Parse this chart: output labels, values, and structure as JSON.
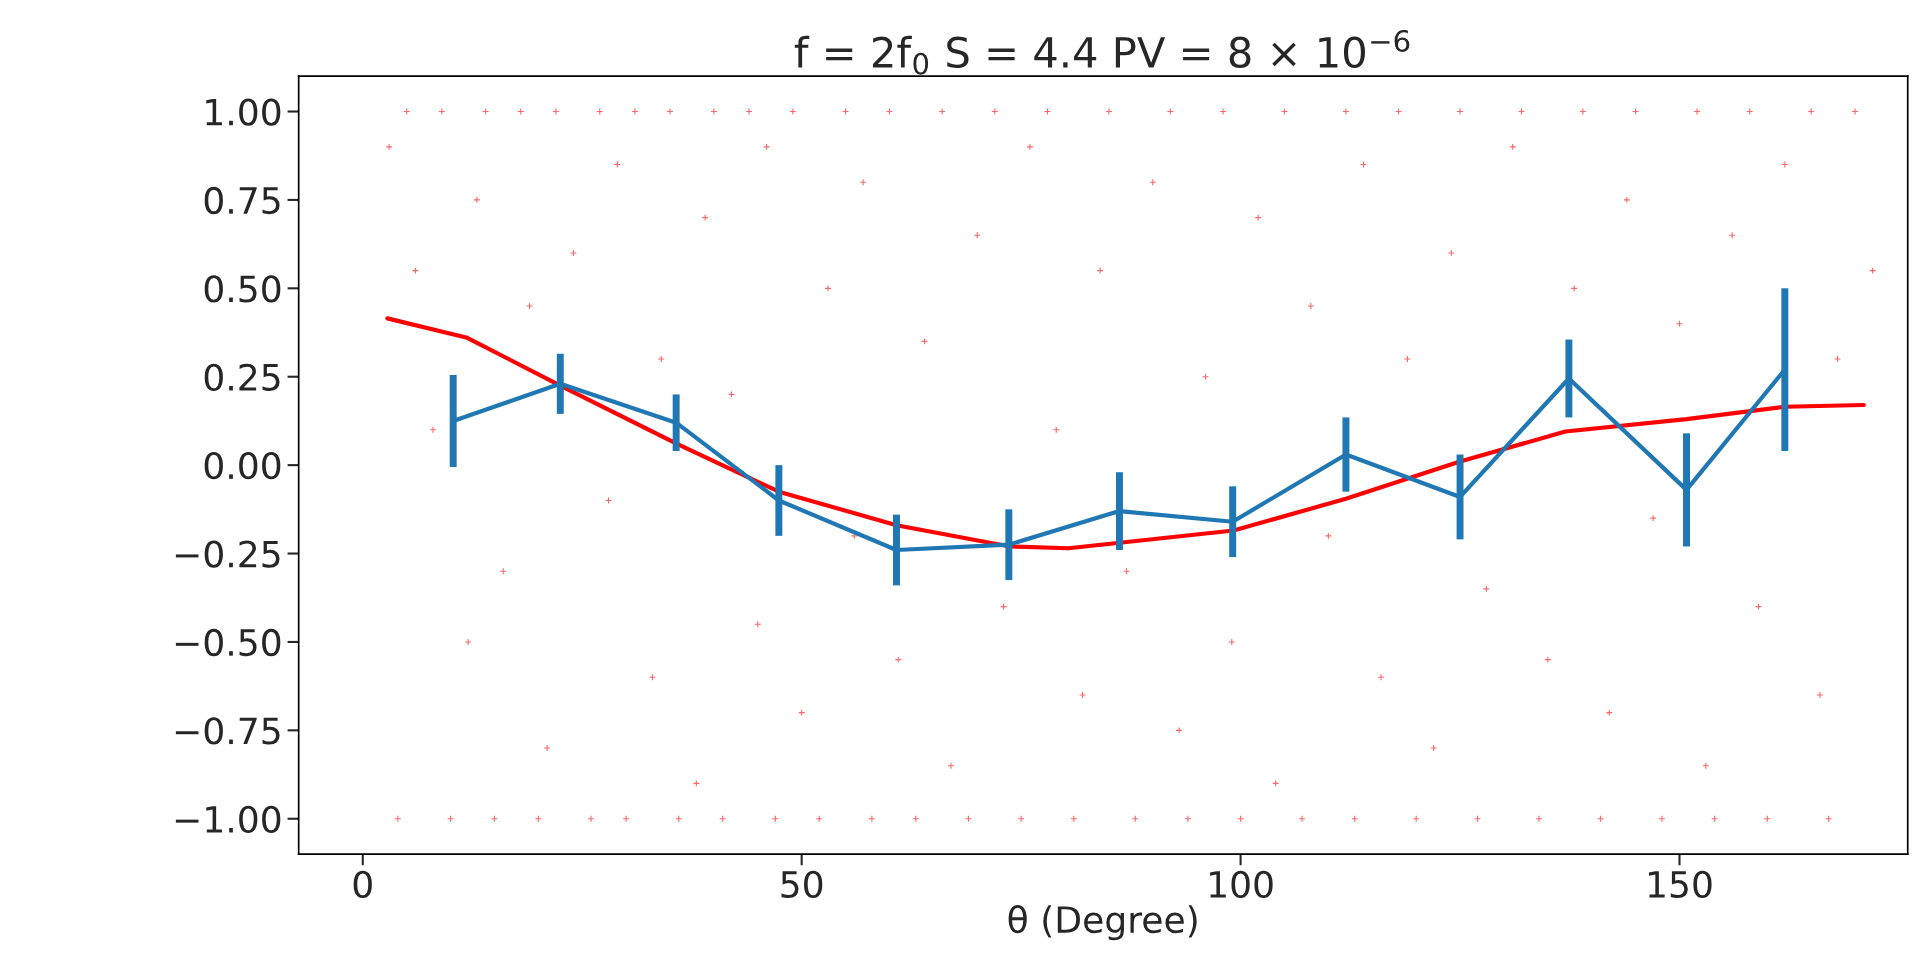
{
  "chart_data": {
    "type": "line",
    "title": "f = 2f$_{0}$ S = 4.4 PV = 8 × 10$^{−6}$",
    "xlabel": "θ (Degree)",
    "xlim": [
      -7.3,
      176
    ],
    "ylim": [
      -1.1,
      1.1
    ],
    "xticks": [
      0,
      50,
      100,
      150
    ],
    "yticks": [
      {
        "value": 1,
        "label": "1.00"
      },
      {
        "value": 0.75,
        "label": "0.75"
      },
      {
        "value": 0.5,
        "label": "0.50"
      },
      {
        "value": 0.25,
        "label": "0.25"
      },
      {
        "value": 0,
        "label": "0.00"
      },
      {
        "value": -0.25,
        "label": "−0.25"
      },
      {
        "value": -0.5,
        "label": "−0.50"
      },
      {
        "value": -0.75,
        "label": "−0.75"
      },
      {
        "value": -1,
        "label": "−1.00"
      }
    ],
    "grid": false,
    "legend": false,
    "series": [
      {
        "type": "scatter",
        "marker": "cross",
        "color": "#ff0000",
        "x": [
          5,
          9,
          14,
          18,
          22,
          27,
          31,
          35,
          40,
          44,
          49,
          55,
          60,
          66,
          72,
          78,
          85,
          92,
          98,
          105,
          112,
          118,
          125,
          132,
          139,
          145,
          152,
          158,
          165,
          170,
          4,
          10,
          15,
          20,
          26,
          30,
          36,
          41,
          47,
          52,
          58,
          63,
          69,
          75,
          81,
          88,
          94,
          100,
          107,
          113,
          120,
          127,
          134,
          141,
          148,
          154,
          160,
          167,
          3,
          6,
          8,
          12,
          13,
          16,
          19,
          21,
          24,
          28,
          29,
          33,
          34,
          38,
          39,
          42,
          45,
          46,
          50,
          53,
          56,
          57,
          61,
          64,
          67,
          70,
          73,
          76,
          79,
          82,
          84,
          87,
          90,
          93,
          96,
          99,
          102,
          104,
          108,
          110,
          114,
          116,
          119,
          122,
          124,
          128,
          131,
          135,
          138,
          142,
          144,
          147,
          150,
          153,
          156,
          159,
          162,
          166,
          168,
          172
        ],
        "values": [
          1,
          1,
          1,
          1,
          1,
          1,
          1,
          1,
          1,
          1,
          1,
          1,
          1,
          1,
          1,
          1,
          1,
          1,
          1,
          1,
          1,
          1,
          1,
          1,
          1,
          1,
          1,
          1,
          1,
          1,
          -1,
          -1,
          -1,
          -1,
          -1,
          -1,
          -1,
          -1,
          -1,
          -1,
          -1,
          -1,
          -1,
          -1,
          -1,
          -1,
          -1,
          -1,
          -1,
          -1,
          -1,
          -1,
          -1,
          -1,
          -1,
          -1,
          -1,
          -1,
          0.9,
          0.55,
          0.1,
          -0.5,
          0.75,
          -0.3,
          0.45,
          -0.8,
          0.6,
          -0.1,
          0.85,
          -0.6,
          0.3,
          -0.9,
          0.7,
          0.2,
          -0.45,
          0.9,
          -0.7,
          0.5,
          -0.2,
          0.8,
          -0.55,
          0.35,
          -0.85,
          0.65,
          -0.4,
          0.9,
          0.1,
          -0.65,
          0.55,
          -0.3,
          0.8,
          -0.75,
          0.25,
          -0.5,
          0.7,
          -0.9,
          0.45,
          -0.2,
          0.85,
          -0.6,
          0.3,
          -0.8,
          0.6,
          -0.35,
          0.9,
          -0.55,
          0.5,
          -0.7,
          0.75,
          -0.15,
          0.4,
          -0.85,
          0.65,
          -0.4,
          0.85,
          -0.65,
          0.3,
          0.55
        ]
      },
      {
        "color": "#ff0000",
        "marker": "none",
        "x": [
          2.8,
          11.9,
          22.5,
          35.8,
          47.4,
          60.8,
          73.7,
          80.4,
          99.2,
          112,
          125,
          137,
          150.8,
          162,
          171
        ],
        "values": [
          0.415,
          0.36,
          0.225,
          0.06,
          -0.075,
          -0.17,
          -0.23,
          -0.235,
          -0.185,
          -0.095,
          0.01,
          0.095,
          0.13,
          0.165,
          0.17
        ]
      },
      {
        "color": "#1f77b4",
        "marker": "none",
        "x": [
          10.3,
          22.5,
          35.7,
          47.4,
          60.8,
          73.6,
          86.2,
          99.1,
          112,
          125,
          137.4,
          150.8,
          162
        ],
        "values": [
          0.125,
          0.23,
          0.12,
          -0.1,
          -0.24,
          -0.225,
          -0.13,
          -0.16,
          0.03,
          -0.09,
          0.245,
          -0.07,
          0.27
        ],
        "errors": [
          0.13,
          0.085,
          0.08,
          0.1,
          0.1,
          0.1,
          0.11,
          0.1,
          0.105,
          0.12,
          0.11,
          0.16,
          0.23
        ]
      }
    ]
  }
}
